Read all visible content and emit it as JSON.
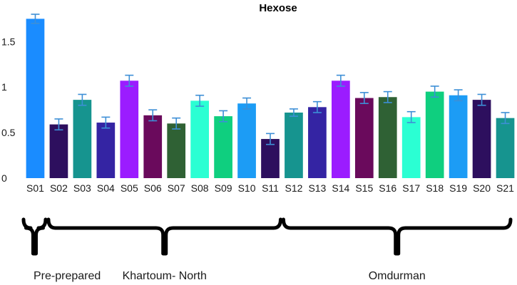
{
  "chart_data": {
    "type": "bar",
    "title": "Hexose",
    "xlabel": "",
    "ylabel": "",
    "ylim": [
      0,
      1.8
    ],
    "yticks": [
      "0",
      "0.5",
      "1",
      "1.5"
    ],
    "grid": false,
    "categories": [
      "S01",
      "S02",
      "S03",
      "S04",
      "S05",
      "S06",
      "S07",
      "S08",
      "S09",
      "S10",
      "S11",
      "S12",
      "S13",
      "S14",
      "S15",
      "S16",
      "S17",
      "S18",
      "S19",
      "S20",
      "S21"
    ],
    "values": [
      1.75,
      0.59,
      0.86,
      0.61,
      1.07,
      0.69,
      0.6,
      0.85,
      0.68,
      0.82,
      0.43,
      0.72,
      0.78,
      1.07,
      0.88,
      0.89,
      0.67,
      0.95,
      0.91,
      0.86,
      0.66
    ],
    "errors": [
      0.05,
      0.06,
      0.06,
      0.06,
      0.06,
      0.06,
      0.06,
      0.06,
      0.06,
      0.06,
      0.06,
      0.04,
      0.06,
      0.06,
      0.06,
      0.06,
      0.06,
      0.06,
      0.06,
      0.06,
      0.06
    ],
    "colors": [
      "#1a8cff",
      "#2d0f5e",
      "#16948f",
      "#3424a3",
      "#9b1cff",
      "#6a0a5c",
      "#2f6134",
      "#2bffd3",
      "#0fcf7f",
      "#1c9cf5",
      "#2d0f5e",
      "#16948f",
      "#3424a3",
      "#9b1cff",
      "#6a0a5c",
      "#2f6134",
      "#2bffd3",
      "#0fcf7f",
      "#1c9cf5",
      "#2d0f5e",
      "#16948f"
    ],
    "error_color": "#3d8fd6",
    "groups": [
      {
        "label": "Pre-prepared",
        "range": [
          "S01",
          "S01"
        ]
      },
      {
        "label": "Khartoum- North",
        "range": [
          "S02",
          "S11"
        ]
      },
      {
        "label": "Omdurman",
        "range": [
          "S12",
          "S21"
        ]
      }
    ]
  }
}
